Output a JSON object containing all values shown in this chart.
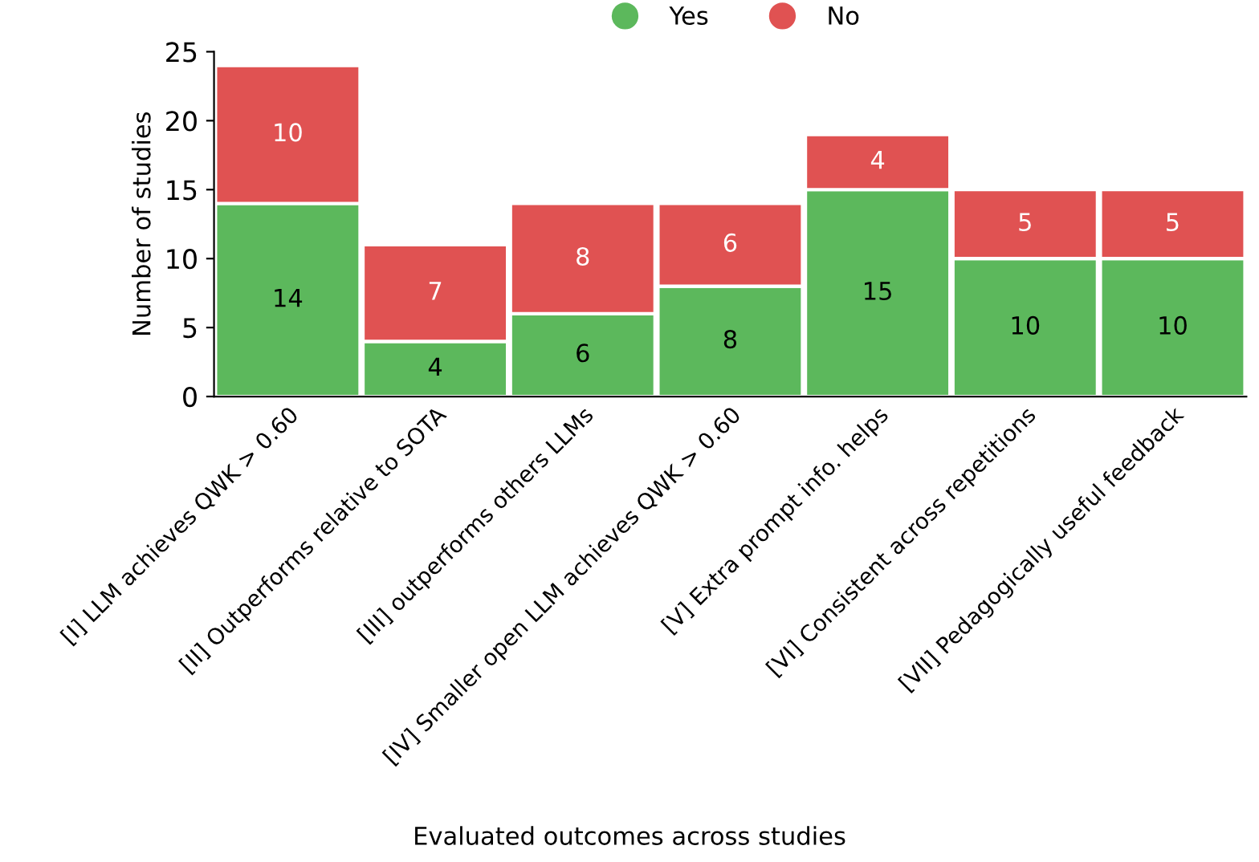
{
  "chart_data": {
    "type": "bar",
    "stacked": true,
    "xlabel": "Evaluated outcomes across studies",
    "ylabel": "Number of studies",
    "categories": [
      "[I] LLM achieves QWK > 0.60",
      "[II] Outperforms relative to SOTA",
      "[III] outperforms others LLMs",
      "[IV] Smaller open LLM achieves QWK > 0.60",
      "[V] Extra prompt info. helps",
      "[VI] Consistent across repetitions",
      "[VII] Pedagogically useful feedback"
    ],
    "series": [
      {
        "name": "Yes",
        "color": "#5cb85c",
        "values": [
          14,
          4,
          6,
          8,
          15,
          10,
          10
        ]
      },
      {
        "name": "No",
        "color": "#e05252",
        "values": [
          10,
          7,
          8,
          6,
          4,
          5,
          5
        ]
      }
    ],
    "ylim": [
      0,
      25
    ],
    "yticks": [
      0,
      5,
      10,
      15,
      20,
      25
    ],
    "grid": false,
    "legend": "top",
    "data_labels": true
  }
}
